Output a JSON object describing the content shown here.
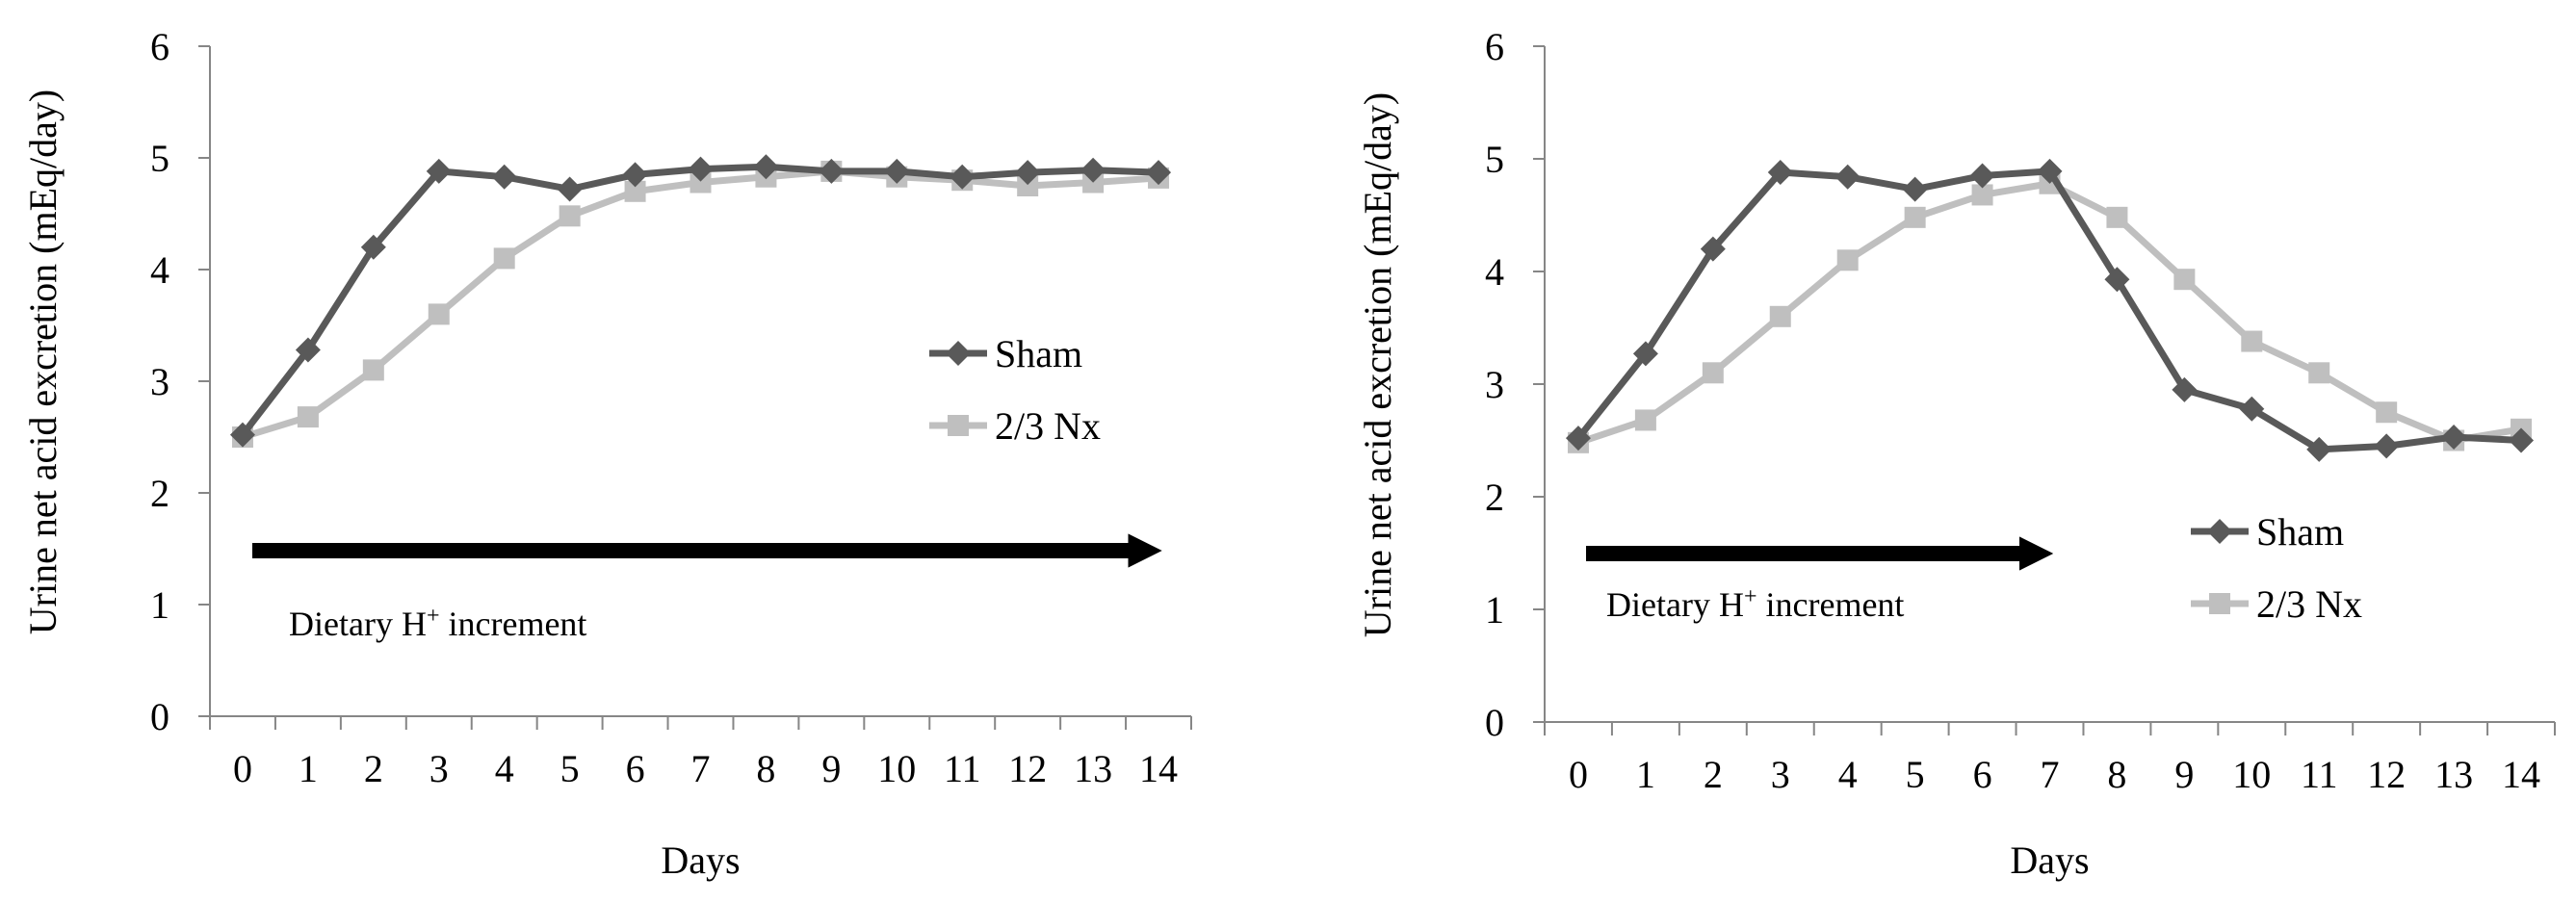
{
  "chart_data": [
    {
      "type": "line",
      "title": "",
      "xlabel": "Days",
      "ylabel": "Urine net acid excretion (mEq/day)",
      "categories": [
        "0",
        "1",
        "2",
        "3",
        "4",
        "5",
        "6",
        "7",
        "8",
        "9",
        "10",
        "11",
        "12",
        "13",
        "14"
      ],
      "ylim": [
        0,
        6
      ],
      "yticks": [
        "0",
        "1",
        "2",
        "3",
        "4",
        "5",
        "6"
      ],
      "grid": false,
      "legend_position": "right",
      "series": [
        {
          "name": "Sham",
          "marker": "diamond",
          "color": "#595959",
          "values": [
            2.52,
            3.28,
            4.2,
            4.88,
            4.83,
            4.72,
            4.85,
            4.9,
            4.92,
            4.88,
            4.88,
            4.83,
            4.87,
            4.89,
            4.87
          ]
        },
        {
          "name": "2/3 Nx",
          "marker": "square",
          "color": "#bfbfbf",
          "values": [
            2.5,
            2.68,
            3.1,
            3.6,
            4.1,
            4.48,
            4.7,
            4.78,
            4.83,
            4.88,
            4.83,
            4.8,
            4.75,
            4.78,
            4.82
          ]
        }
      ],
      "annotation": {
        "text_before": "Dietary H",
        "superscript": "+",
        "text_after": " increment",
        "arrow_from_day": 0,
        "arrow_to_day": 14
      }
    },
    {
      "type": "line",
      "title": "",
      "xlabel": "Days",
      "ylabel": "Urine net acid excretion (mEq/day)",
      "categories": [
        "0",
        "1",
        "2",
        "3",
        "4",
        "5",
        "6",
        "7",
        "8",
        "9",
        "10",
        "11",
        "12",
        "13",
        "14"
      ],
      "ylim": [
        0,
        6
      ],
      "yticks": [
        "0",
        "1",
        "2",
        "3",
        "4",
        "5",
        "6"
      ],
      "grid": false,
      "legend_position": "right",
      "series": [
        {
          "name": "Sham",
          "marker": "diamond",
          "color": "#595959",
          "values": [
            2.52,
            3.27,
            4.2,
            4.88,
            4.84,
            4.73,
            4.85,
            4.89,
            3.93,
            2.95,
            2.78,
            2.42,
            2.45,
            2.53,
            2.5
          ]
        },
        {
          "name": "2/3 Nx",
          "marker": "square",
          "color": "#bfbfbf",
          "values": [
            2.48,
            2.68,
            3.1,
            3.6,
            4.1,
            4.48,
            4.68,
            4.78,
            4.48,
            3.93,
            3.38,
            3.1,
            2.75,
            2.5,
            2.6
          ]
        }
      ],
      "annotation": {
        "text_before": "Dietary H",
        "superscript": "+",
        "text_after": " increment",
        "arrow_from_day": 0,
        "arrow_to_day": 7
      }
    }
  ]
}
